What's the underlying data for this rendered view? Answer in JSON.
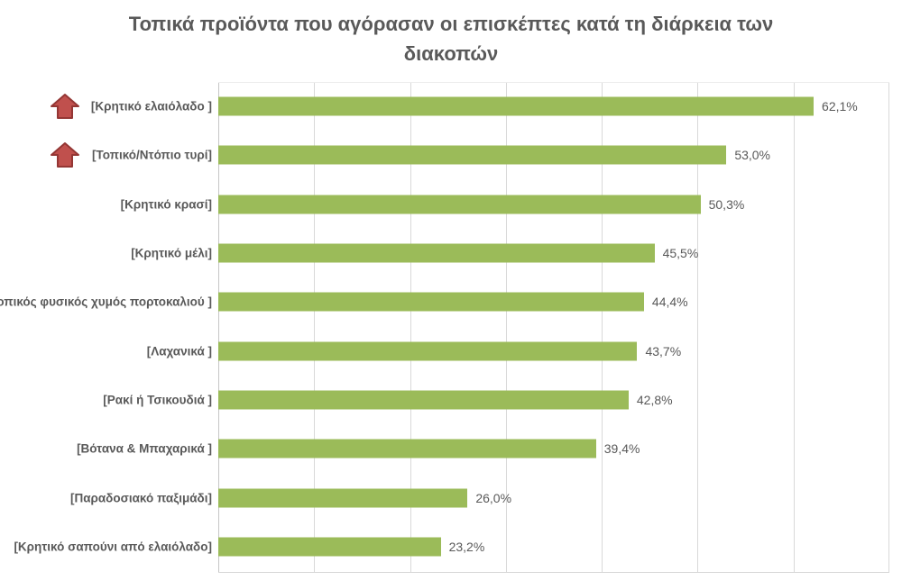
{
  "title": "Τοπικά προϊόντα που αγόρασαν οι επισκέπτες κατά τη διάρκεια των διακοπών",
  "chart_data": {
    "type": "bar",
    "orientation": "horizontal",
    "title": "Τοπικά προϊόντα που αγόρασαν οι επισκέπτες κατά τη διάρκεια των διακοπών",
    "xlim": [
      0,
      70
    ],
    "gridline_step": 10,
    "grid": "vertical-only",
    "legend": "none",
    "categories": [
      "[Κρητικό ελαιόλαδο ]",
      "[Τοπικό/Ντόπιο τυρί]",
      "[Κρητικό κρασί]",
      "[Κρητικό μέλι]",
      "[Τοπικός φυσικός χυμός πορτοκαλιού ]",
      "[Λαχανικά ]",
      "[Ρακί ή Τσικουδιά ]",
      "[Βότανα & Μπαχαρικά ]",
      "[Παραδοσιακό παξιμάδι]",
      "[Κρητικό σαπούνι από ελαιόλαδο]"
    ],
    "values": [
      62.1,
      53.0,
      50.3,
      45.5,
      44.4,
      43.7,
      42.8,
      39.4,
      26.0,
      23.2
    ],
    "value_labels": [
      "62,1%",
      "53,0%",
      "50,3%",
      "45,5%",
      "44,4%",
      "43,7%",
      "42,8%",
      "39,4%",
      "26,0%",
      "23,2%"
    ],
    "increase_arrow_rows": [
      0,
      1
    ],
    "colors": {
      "bar": "#9BBB59",
      "arrow_fill": "#C0504D",
      "arrow_stroke": "#943634",
      "text": "#595959",
      "gridline": "#D9D9D9"
    }
  }
}
